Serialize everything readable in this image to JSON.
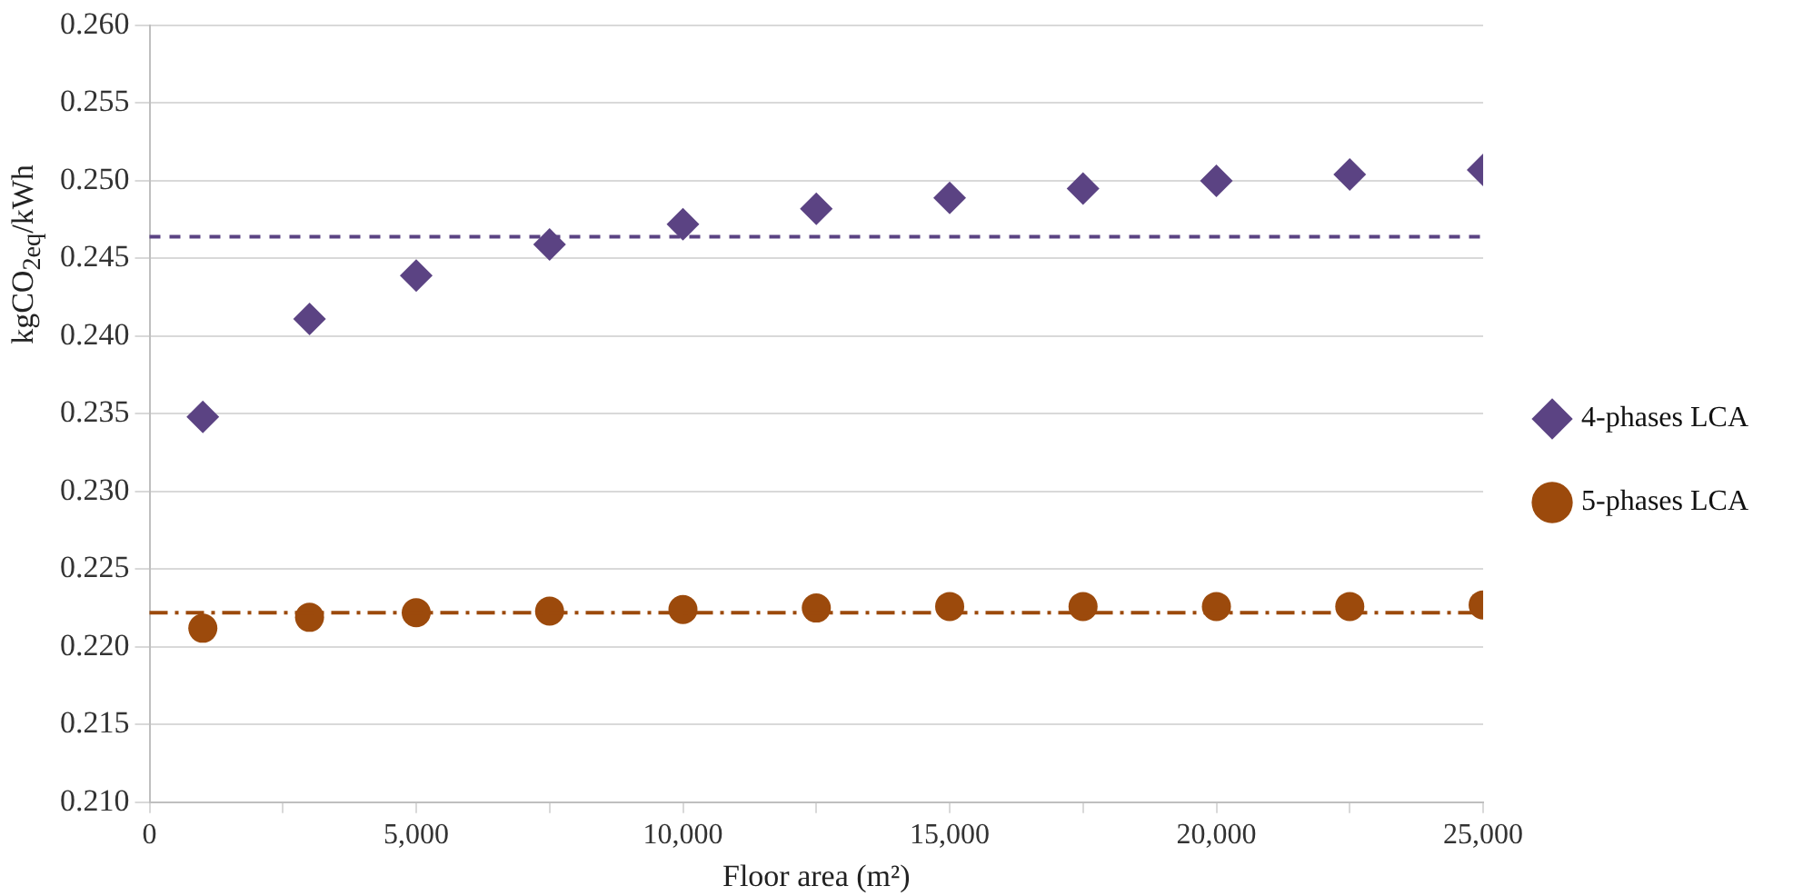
{
  "chart_data": {
    "type": "scatter",
    "xlabel": "Floor area (m²)",
    "ylabel": "kgCO$_{2eq}$/kWh",
    "x": [
      1000,
      3000,
      5000,
      7500,
      10000,
      12500,
      15000,
      17500,
      20000,
      22500,
      25000
    ],
    "series": [
      {
        "name": "4-phases LCA",
        "color": "#5b4383",
        "marker": "diamond",
        "values": [
          0.2348,
          0.2411,
          0.2439,
          0.2459,
          0.2472,
          0.2482,
          0.2489,
          0.2495,
          0.25,
          0.2504,
          0.2507
        ]
      },
      {
        "name": "5-phases LCA",
        "color": "#9c4a0c",
        "marker": "circle",
        "values": [
          0.2212,
          0.2219,
          0.2222,
          0.2223,
          0.2224,
          0.2225,
          0.2226,
          0.2226,
          0.2226,
          0.2226,
          0.2227
        ]
      }
    ],
    "ref_lines": [
      {
        "axis": "y",
        "value": 0.2464,
        "color": "#5b4383",
        "line_style": "dashed"
      },
      {
        "axis": "y",
        "value": 0.2222,
        "color": "#9c4a0c",
        "line_style": "dashdot"
      }
    ],
    "xlim": [
      0,
      25000
    ],
    "xticks": [
      0,
      {
        "value": 2500,
        "label": null
      },
      {
        "value": 5000,
        "label": "5,000"
      },
      {
        "value": 7500,
        "label": null
      },
      {
        "value": 10000,
        "label": "10,000"
      },
      {
        "value": 12500,
        "label": null
      },
      {
        "value": 15000,
        "label": "15,000"
      },
      {
        "value": 17500,
        "label": null
      },
      {
        "value": 20000,
        "label": "20,000"
      },
      {
        "value": 22500,
        "label": null
      },
      {
        "value": 25000,
        "label": "25,000"
      }
    ],
    "ylim": [
      0.21,
      0.26
    ],
    "yticks": [
      {
        "value": 0.21,
        "label": "0.210"
      },
      {
        "value": 0.215,
        "label": "0.215"
      },
      {
        "value": 0.22,
        "label": "0.220"
      },
      {
        "value": 0.225,
        "label": "0.225"
      },
      {
        "value": 0.23,
        "label": "0.230"
      },
      {
        "value": 0.235,
        "label": "0.235"
      },
      {
        "value": 0.24,
        "label": "0.240"
      },
      {
        "value": 0.245,
        "label": "0.245"
      },
      {
        "value": 0.25,
        "label": "0.250"
      },
      {
        "value": 0.255,
        "label": "0.255"
      },
      {
        "value": 0.26,
        "label": "0.260"
      }
    ],
    "grid": "y",
    "legend": "right"
  }
}
